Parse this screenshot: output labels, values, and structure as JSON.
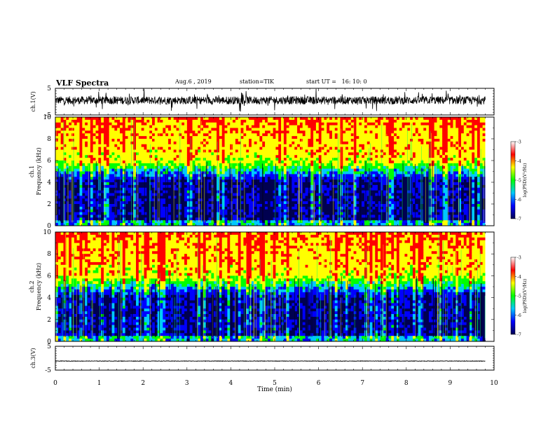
{
  "header": {
    "title": "VLF Spectra",
    "date": "Aug.6 , 2019",
    "station": "station=TIK",
    "start": "start UT =   16: 10: 0"
  },
  "colorbar": {
    "label": "log(PSD)(V²/Hz)",
    "ticks": [
      "-3",
      "-4",
      "-5",
      "-6",
      "-7"
    ],
    "colors": [
      "#ffffff",
      "#ff0000",
      "#ffff00",
      "#00ff00",
      "#00c8ff",
      "#0000ff",
      "#000050"
    ]
  },
  "chart_data": [
    {
      "type": "line",
      "panel": "ch1-waveform",
      "ylabel": "ch.1(V)",
      "ylim": [
        -5,
        5
      ],
      "ytick_labels": [
        "5",
        "-5"
      ],
      "x_range": [
        0,
        9.8
      ],
      "baseline": 0.5,
      "approx_amplitude": 1.5
    },
    {
      "type": "heatmap",
      "panel": "ch1-spectrogram",
      "ylabel": "ch.1\nFrequency (kHz)",
      "ylim": [
        0,
        10
      ],
      "ytick_labels": [
        "0",
        "2",
        "4",
        "6",
        "8",
        "10"
      ],
      "x_range": [
        0,
        9.8
      ],
      "value_range": [
        -7,
        -3
      ],
      "bands": [
        {
          "freq_from": 0,
          "freq_to": 4,
          "level": "blue",
          "log_psd": -6.3
        },
        {
          "freq_from": 4,
          "freq_to": 6,
          "level": "cyan-green",
          "log_psd": -5.2
        },
        {
          "freq_from": 6,
          "freq_to": 10,
          "level": "red-yellow",
          "log_psd": -4.0
        }
      ]
    },
    {
      "type": "heatmap",
      "panel": "ch2-spectrogram",
      "ylabel": "ch.2\nFrequency (kHz)",
      "ylim": [
        0,
        10
      ],
      "ytick_labels": [
        "0",
        "2",
        "4",
        "6",
        "8",
        "10"
      ],
      "x_range": [
        0,
        9.8
      ],
      "value_range": [
        -7,
        -3
      ],
      "bands": [
        {
          "freq_from": 0,
          "freq_to": 4,
          "level": "blue",
          "log_psd": -6.3
        },
        {
          "freq_from": 4,
          "freq_to": 6,
          "level": "cyan-green",
          "log_psd": -5.2
        },
        {
          "freq_from": 6,
          "freq_to": 10,
          "level": "red-yellow",
          "log_psd": -4.0
        }
      ]
    },
    {
      "type": "line",
      "panel": "ch3-waveform",
      "ylabel": "ch.3(V)",
      "ylim": [
        -5,
        5
      ],
      "ytick_labels": [
        "5",
        "-5"
      ],
      "x_range": [
        0,
        9.8
      ],
      "baseline": -1.2,
      "approx_amplitude": 0.1
    }
  ],
  "x_axis": {
    "xlabel": "Time (min)",
    "xlim": [
      0,
      10
    ],
    "tick_labels": [
      "0",
      "1",
      "2",
      "3",
      "4",
      "5",
      "6",
      "7",
      "8",
      "9",
      "10"
    ]
  }
}
